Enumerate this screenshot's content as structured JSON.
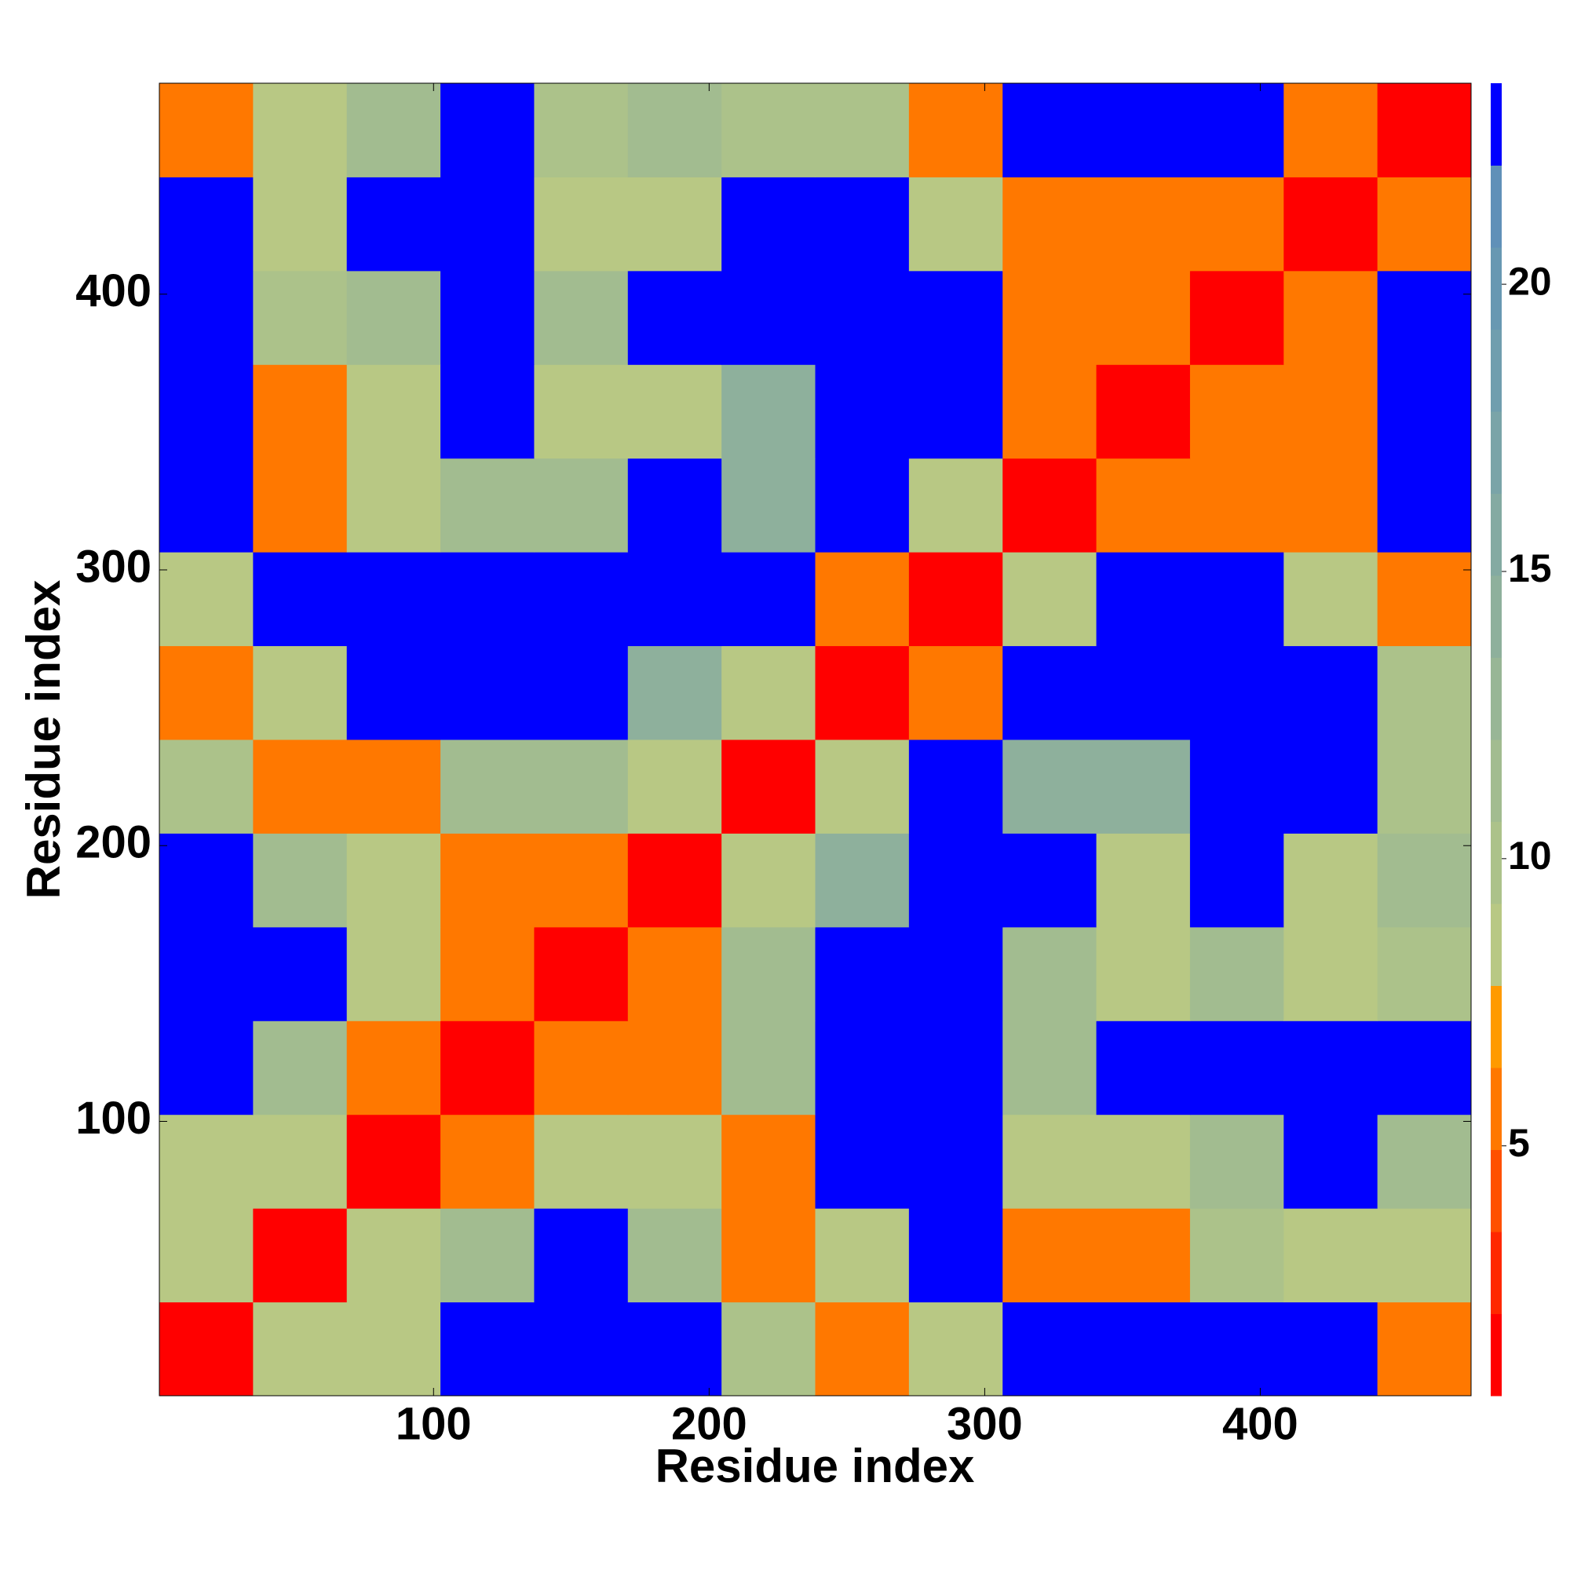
{
  "chart_data": {
    "type": "heatmap",
    "x_label": "Residue index",
    "y_label": "Residue index",
    "xlim": [
      0.5,
      476.5
    ],
    "ylim": [
      0.5,
      476.5
    ],
    "xticks": [
      100,
      200,
      300,
      400
    ],
    "yticks": [
      100,
      200,
      300,
      400
    ],
    "xbins": [
      0.5,
      34.5,
      68.5,
      102.5,
      136.5,
      170.5,
      204.5,
      238.5,
      272.5,
      306.5,
      340.5,
      374.5,
      408.5,
      442.5,
      476.5
    ],
    "ybins": [
      0.5,
      34.5,
      68.5,
      102.5,
      136.5,
      170.5,
      204.5,
      238.5,
      272.5,
      306.5,
      340.5,
      374.5,
      408.5,
      442.5,
      476.5
    ],
    "values": [
      [
        2,
        8,
        8,
        23,
        23,
        23,
        10,
        6,
        8,
        23,
        23,
        23,
        23,
        6
      ],
      [
        8,
        2,
        8,
        12,
        23,
        12,
        6,
        8,
        23,
        6,
        6,
        10,
        8,
        8
      ],
      [
        8,
        8,
        2,
        6,
        8,
        8,
        6,
        23,
        23,
        8,
        8,
        12,
        23,
        12
      ],
      [
        23,
        12,
        6,
        2,
        6,
        6,
        12,
        23,
        23,
        12,
        23,
        23,
        23,
        23
      ],
      [
        23,
        23,
        8,
        6,
        2,
        6,
        12,
        23,
        23,
        12,
        8,
        12,
        8,
        10
      ],
      [
        23,
        12,
        8,
        6,
        6,
        2,
        8,
        14,
        23,
        23,
        8,
        23,
        8,
        12
      ],
      [
        10,
        6,
        6,
        12,
        12,
        8,
        2,
        8,
        23,
        14,
        14,
        23,
        23,
        10
      ],
      [
        6,
        8,
        23,
        23,
        23,
        14,
        8,
        2,
        5,
        23,
        23,
        23,
        23,
        10
      ],
      [
        8,
        23,
        23,
        23,
        23,
        23,
        23,
        5,
        2,
        8,
        23,
        23,
        8,
        6
      ],
      [
        23,
        6,
        8,
        12,
        12,
        23,
        14,
        23,
        8,
        2,
        5,
        6,
        6,
        23
      ],
      [
        23,
        6,
        8,
        23,
        8,
        8,
        14,
        23,
        23,
        5,
        2,
        5,
        6,
        23
      ],
      [
        23,
        10,
        12,
        23,
        12,
        23,
        23,
        23,
        23,
        6,
        5,
        2,
        6,
        23
      ],
      [
        23,
        8,
        23,
        23,
        8,
        8,
        23,
        23,
        8,
        6,
        6,
        6,
        2,
        6
      ],
      [
        6,
        8,
        12,
        23,
        10,
        12,
        10,
        10,
        6,
        23,
        23,
        23,
        6,
        2
      ]
    ],
    "colorbar": {
      "lim": [
        0.65,
        23.5
      ],
      "ticks": [
        5,
        10,
        15,
        20
      ],
      "colors": [
        "#ff0000",
        "#ff2800",
        "#ff5000",
        "#ff7800",
        "#ff9a00",
        "#b8c884",
        "#acc28a",
        "#a2bc90",
        "#98b696",
        "#8eb09c",
        "#84aaa2",
        "#7aa4a8",
        "#709eae",
        "#6898b2",
        "#6090b8",
        "#0000ff"
      ]
    }
  }
}
